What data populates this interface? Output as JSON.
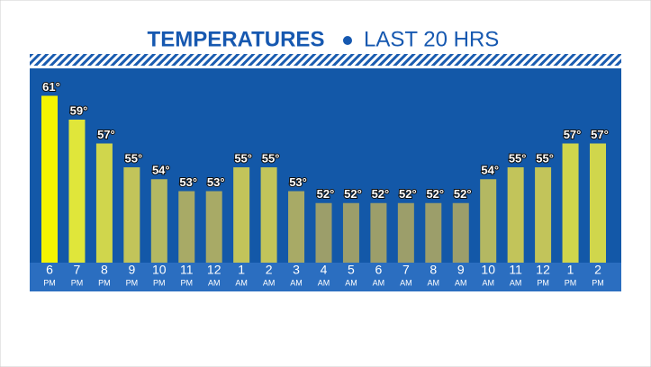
{
  "chart_data": {
    "type": "bar",
    "title": "TEMPERATURES",
    "subtitle": "LAST 20 HRS",
    "categories": [
      "6",
      "7",
      "8",
      "9",
      "10",
      "11",
      "12",
      "1",
      "2",
      "3",
      "4",
      "5",
      "6",
      "7",
      "8",
      "9",
      "10",
      "11",
      "12",
      "1",
      "2"
    ],
    "periods": [
      "PM",
      "PM",
      "PM",
      "PM",
      "PM",
      "PM",
      "AM",
      "AM",
      "AM",
      "AM",
      "AM",
      "AM",
      "AM",
      "AM",
      "AM",
      "AM",
      "AM",
      "AM",
      "PM",
      "PM",
      "PM"
    ],
    "values": [
      61,
      59,
      57,
      55,
      54,
      53,
      53,
      55,
      55,
      53,
      52,
      52,
      52,
      52,
      52,
      52,
      54,
      55,
      55,
      57,
      57
    ],
    "value_labels": [
      "61°",
      "59°",
      "57°",
      "55°",
      "54°",
      "53°",
      "53°",
      "55°",
      "55°",
      "53°",
      "52°",
      "52°",
      "52°",
      "52°",
      "52°",
      "52°",
      "54°",
      "55°",
      "55°",
      "57°",
      "57°"
    ],
    "colors": [
      "#f4f400",
      "#e0e63a",
      "#d0d64c",
      "#c2c45a",
      "#b4b862",
      "#a8aa66",
      "#a8aa66",
      "#c2c45a",
      "#c2c45a",
      "#a8aa66",
      "#9c9e6a",
      "#9c9e6a",
      "#9c9e6a",
      "#9c9e6a",
      "#9c9e6a",
      "#9c9e6a",
      "#b4b862",
      "#c2c45a",
      "#c2c45a",
      "#d0d64c",
      "#d0d64c"
    ],
    "ylim": [
      47,
      63
    ]
  }
}
